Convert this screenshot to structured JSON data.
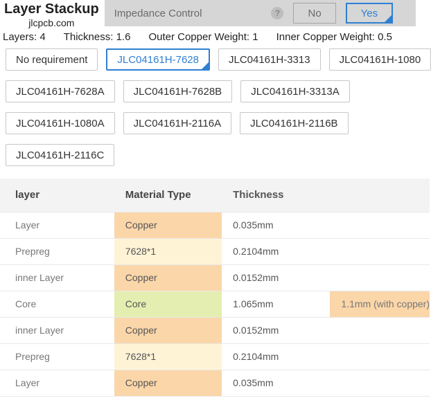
{
  "header": {
    "title": "Layer Stackup",
    "subtitle": "jlcpcb.com",
    "impedance_label": "Impedance Control",
    "no_label": "No",
    "yes_label": "Yes",
    "help_glyph": "?"
  },
  "specs": {
    "layers_label": "Layers:",
    "layers_value": "4",
    "thickness_label": "Thickness:",
    "thickness_value": "1.6",
    "outer_label": "Outer Copper Weight:",
    "outer_value": "1",
    "inner_label": "Inner Copper Weight:",
    "inner_value": "0.5"
  },
  "options": {
    "rows": [
      [
        "No requirement",
        "JLC04161H-7628",
        "JLC04161H-3313",
        "JLC04161H-1080"
      ],
      [
        "JLC04161H-7628A",
        "JLC04161H-7628B",
        "JLC04161H-3313A"
      ],
      [
        "JLC04161H-1080A",
        "JLC04161H-2116A",
        "JLC04161H-2116B"
      ],
      [
        "JLC04161H-2116C"
      ]
    ],
    "selected": "JLC04161H-7628"
  },
  "table": {
    "columns": [
      "layer",
      "Material Type",
      "Thickness",
      ""
    ],
    "rows": [
      {
        "name": "Layer",
        "material": "Copper",
        "mat_type": "copper",
        "thickness": "0.035mm",
        "extra": ""
      },
      {
        "name": "Prepreg",
        "material": "7628*1",
        "mat_type": "prepreg",
        "thickness": "0.2104mm",
        "extra": ""
      },
      {
        "name": "inner Layer",
        "material": "Copper",
        "mat_type": "copper",
        "thickness": "0.0152mm",
        "extra": ""
      },
      {
        "name": "Core",
        "material": "Core",
        "mat_type": "core",
        "thickness": "1.065mm",
        "extra": "1.1mm (with copper)"
      },
      {
        "name": "inner Layer",
        "material": "Copper",
        "mat_type": "copper",
        "thickness": "0.0152mm",
        "extra": ""
      },
      {
        "name": "Prepreg",
        "material": "7628*1",
        "mat_type": "prepreg",
        "thickness": "0.2104mm",
        "extra": ""
      },
      {
        "name": "Layer",
        "material": "Copper",
        "mat_type": "copper",
        "thickness": "0.035mm",
        "extra": ""
      }
    ]
  },
  "colors": {
    "accent": "#2f7fd1",
    "copper": "#fbd6a9",
    "prepreg": "#fff3d6",
    "core": "#e4eeb0",
    "header_bg": "#f3f3f3",
    "impedance_bg": "#d6d6d6"
  }
}
